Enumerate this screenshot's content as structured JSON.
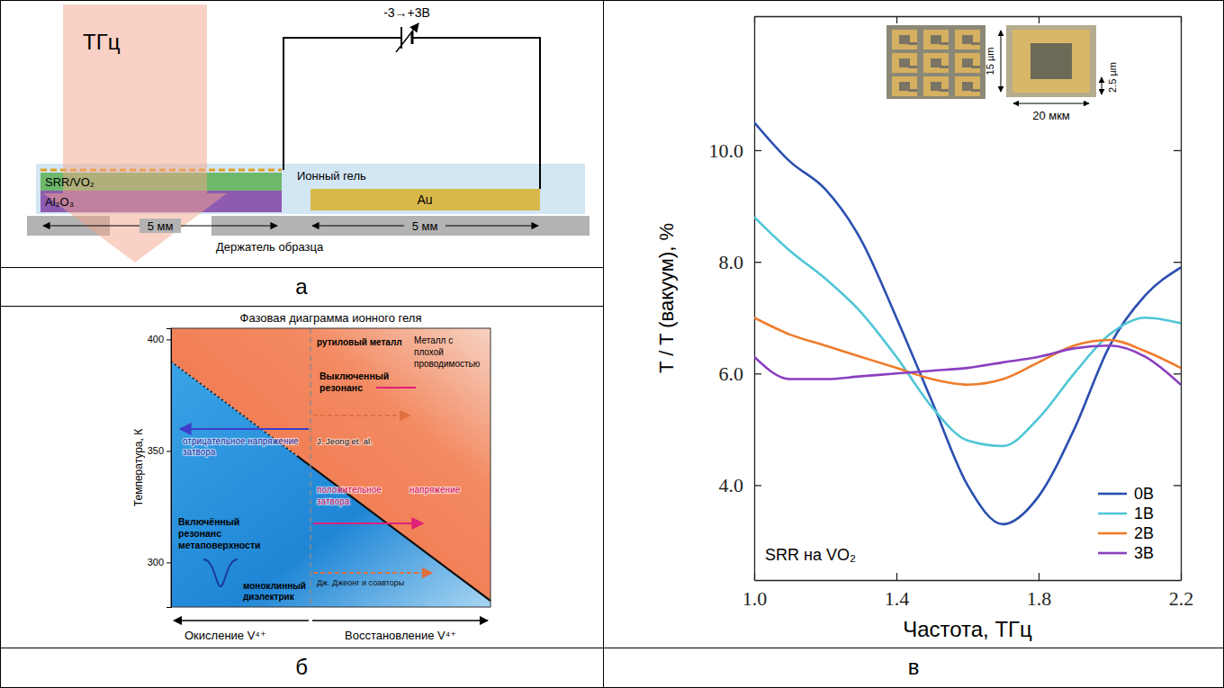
{
  "chart_data": {
    "type": "line",
    "x_label": "Частота, ТГц",
    "y_label": "T / T (вакуум), %",
    "annotation": "SRR на VO₂",
    "x": [
      1.0,
      1.1,
      1.2,
      1.3,
      1.4,
      1.5,
      1.6,
      1.7,
      1.8,
      1.9,
      2.0,
      2.1,
      2.2
    ],
    "xlim": [
      1.0,
      2.2
    ],
    "xticks": [
      {
        "value": 1,
        "label": "1.0"
      },
      1.4,
      1.8,
      2.2
    ],
    "ylim": [
      2.3,
      12.4
    ],
    "yticks": [
      {
        "value": 4,
        "label": "4.0"
      },
      {
        "value": 6,
        "label": "6.0"
      },
      {
        "value": 8,
        "label": "8.0"
      },
      {
        "value": 10,
        "label": "10.0"
      }
    ],
    "legend": "lower right",
    "series": [
      {
        "name": "0В",
        "color": "#2a4fb0",
        "values": [
          10.5,
          9.8,
          9.3,
          8.4,
          7.0,
          5.5,
          4.0,
          3.3,
          3.8,
          5.0,
          6.5,
          7.4,
          7.9
        ]
      },
      {
        "name": "1В",
        "color": "#4fc6d6",
        "values": [
          8.8,
          8.2,
          7.7,
          7.1,
          6.3,
          5.4,
          4.8,
          4.7,
          5.2,
          6.0,
          6.7,
          7.0,
          6.9
        ]
      },
      {
        "name": "2В",
        "color": "#f07b2a",
        "values": [
          7.0,
          6.7,
          6.5,
          6.3,
          6.1,
          5.9,
          5.8,
          5.9,
          6.2,
          6.5,
          6.6,
          6.4,
          6.1
        ]
      },
      {
        "name": "3В",
        "color": "#8a3fc0",
        "values": [
          6.3,
          5.9,
          5.9,
          5.95,
          6.0,
          6.05,
          6.1,
          6.2,
          6.3,
          6.45,
          6.5,
          6.3,
          5.8
        ]
      }
    ]
  },
  "inset": {
    "height_label": "15 µm",
    "width_label": "20 мкм",
    "gap_label": "2.5 µm"
  },
  "panel_a": {
    "beam": "ТГц",
    "voltage": "-3→+3В",
    "layers": {
      "sample": "SRR/VO₂",
      "substrate": "Al₂O₃",
      "gel": "Ионный гель",
      "electrode": "Au",
      "holder": "Держатель образца"
    },
    "dimensions": [
      "5 мм",
      "5 мм"
    ]
  },
  "panel_b": {
    "title": "Фазовая диаграмма ионного геля",
    "y_label": "Температура, К",
    "ylim": [
      280,
      405
    ],
    "yticks": [
      300,
      350,
      400
    ],
    "regions": {
      "metal": "рутиловый металл",
      "poor_metal": [
        "Металл с",
        "плохой",
        "проводимостью"
      ],
      "off": [
        "Выключенный",
        "резонанс"
      ],
      "on": [
        "Включённый",
        "резонанс",
        "метаповерхности"
      ],
      "insulator": [
        "моноклинный",
        "диэлектрик"
      ]
    },
    "arrows": {
      "negative": [
        "отрицательное напряжение",
        "затвора"
      ],
      "positive": [
        "положительное",
        "напряжение",
        "затвора"
      ],
      "ref_en": "J. Jeong et. al.",
      "ref_ru": "Дж. Джеонг и соавторы"
    },
    "bottom": {
      "left": "Окисление V⁴⁺",
      "right": "Восстановление V⁴⁺"
    }
  },
  "panel_labels": {
    "a": "а",
    "b": "б",
    "c": "в"
  }
}
